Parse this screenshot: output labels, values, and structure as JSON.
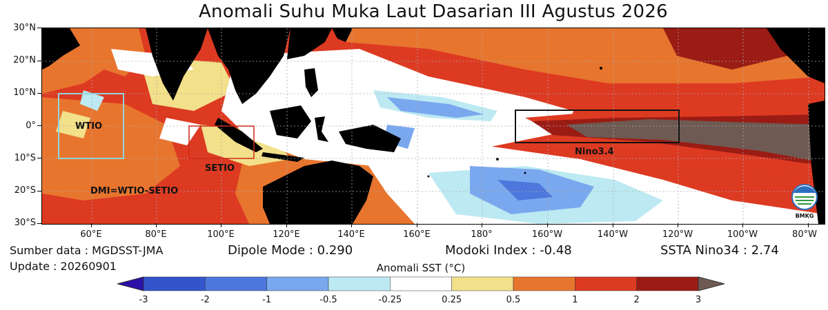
{
  "title": "Anomali Suhu Muka Laut Dasarian III Agustus 2026",
  "axes": {
    "lon_labels": [
      "60°E",
      "80°E",
      "100°E",
      "120°E",
      "140°E",
      "160°E",
      "180°",
      "160°W",
      "140°W",
      "120°W",
      "100°W",
      "80°W"
    ],
    "lat_labels": [
      "30°N",
      "20°N",
      "10°N",
      "0°",
      "10°S",
      "20°S",
      "30°S"
    ]
  },
  "regions": {
    "wtio": "WTIO",
    "setio": "SETIO",
    "nino34": "Nino3.4",
    "dmi": "DMI=WTIO-SETIO"
  },
  "info": {
    "source": "Sumber data : MGDSST-JMA",
    "update": "Update : 20260901",
    "dipole": "Dipole Mode : 0.290",
    "modoki": "Modoki Index : -0.48",
    "ssta": "SSTA Nino34 : 2.74"
  },
  "colorbar": {
    "title": "Anomali SST (°C)",
    "labels": [
      "-3",
      "-2",
      "-1",
      "-0.5",
      "-0.25",
      "0.25",
      "0.5",
      "1",
      "2",
      "3"
    ],
    "colors": [
      "#3355cc",
      "#4d77dd",
      "#7aa8ee",
      "#bde9f2",
      "#ffffff",
      "#f2e08a",
      "#e8752e",
      "#dd3a22",
      "#9a1c14"
    ],
    "under": "#2a0fa8",
    "over": "#6e5a52"
  },
  "logo": {
    "text": "BMKG"
  }
}
